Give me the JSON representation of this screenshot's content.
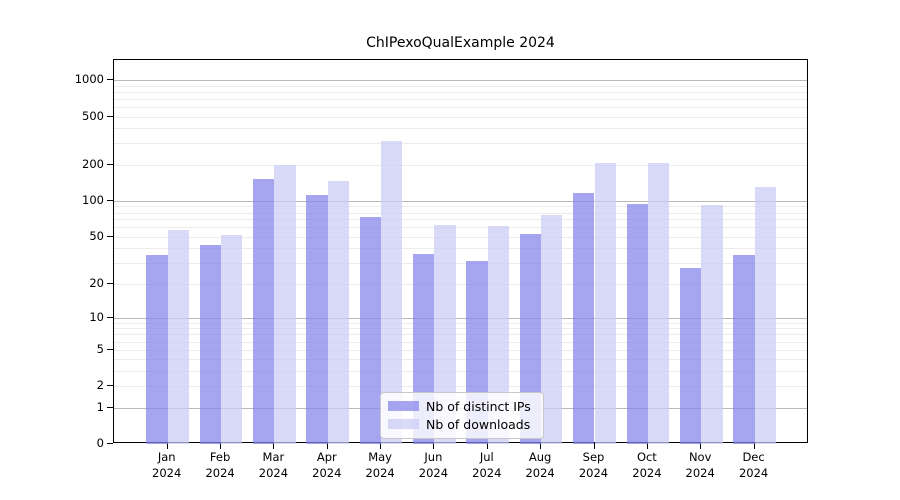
{
  "chart_data": {
    "type": "bar",
    "title": "ChIPexoQualExample 2024",
    "categories": [
      "Jan 2024",
      "Feb 2024",
      "Mar 2024",
      "Apr 2024",
      "May 2024",
      "Jun 2024",
      "Jul 2024",
      "Aug 2024",
      "Sep 2024",
      "Oct 2024",
      "Nov 2024",
      "Dec 2024"
    ],
    "series": [
      {
        "name": "Nb of distinct IPs",
        "color": "#a6a6f0",
        "fill_rgba": "rgba(131,131,234,0.72)",
        "values": [
          35,
          43,
          151,
          113,
          73,
          36,
          31,
          53,
          117,
          95,
          27,
          35
        ]
      },
      {
        "name": "Nb of downloads",
        "color": "#d9d9f8",
        "fill_rgba": "rgba(202,202,245,0.72)",
        "values": [
          57,
          52,
          197,
          146,
          312,
          63,
          62,
          76,
          207,
          207,
          93,
          130
        ]
      }
    ],
    "xlabel": "",
    "ylabel": "",
    "y_scale": "log1p",
    "y_ticks": [
      1000,
      500,
      200,
      100,
      50,
      20,
      10,
      5,
      2,
      1,
      0
    ],
    "y_major_gridlines": [
      1,
      10,
      100,
      1000
    ],
    "y_minor_gridlines": [
      2,
      3,
      4,
      5,
      6,
      7,
      8,
      9,
      20,
      30,
      40,
      50,
      60,
      70,
      80,
      90,
      200,
      300,
      400,
      500,
      600,
      700,
      800,
      900
    ],
    "grid": true,
    "legend_position": "inside lower-center",
    "colors": {
      "grid_major": "#b9b9b9",
      "grid_minor": "#ececec",
      "axis": "#000000",
      "background": "#ffffff"
    }
  }
}
